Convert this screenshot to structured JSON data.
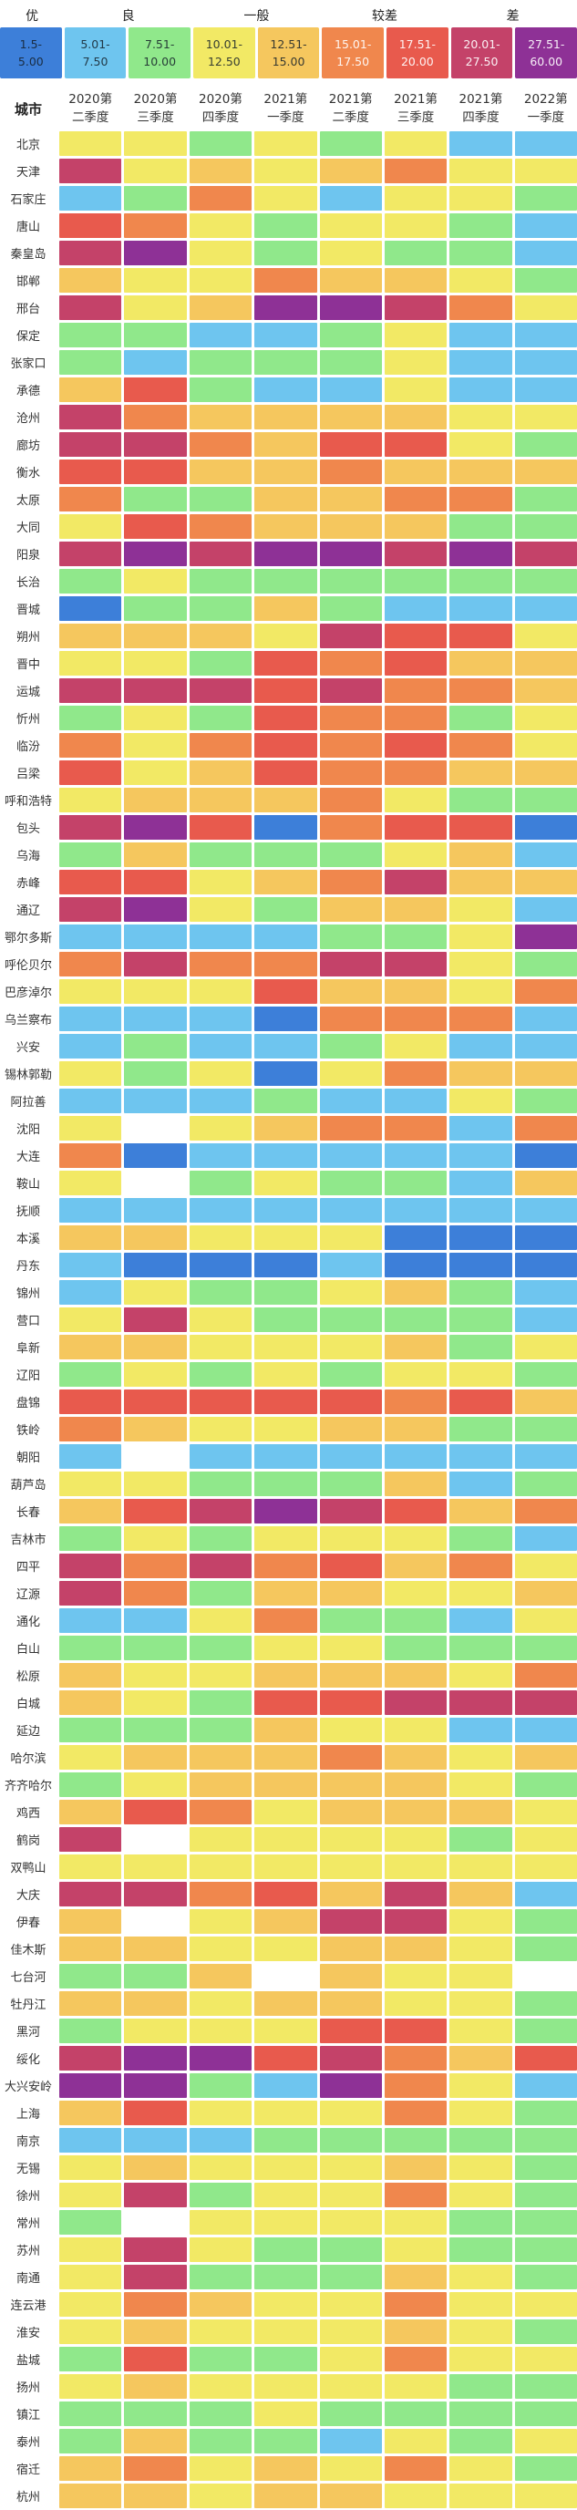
{
  "palette": {
    "0": "#FFFFFF",
    "1": "#3D7FD9",
    "2": "#6EC5EF",
    "3": "#90E88B",
    "4": "#F2E965",
    "5": "#F5C75E",
    "6": "#F0874D",
    "7": "#E85A4D",
    "8": "#C44269",
    "9": "#8E3196"
  },
  "legend": {
    "categories": [
      {
        "label": "优",
        "span": 1
      },
      {
        "label": "良",
        "span": 2
      },
      {
        "label": "一般",
        "span": 2
      },
      {
        "label": "较差",
        "span": 2
      },
      {
        "label": "差",
        "span": 2
      }
    ],
    "swatches": [
      {
        "line1": "1.5-",
        "line2": "5.00",
        "color": "#3D7FD9",
        "text": "dark"
      },
      {
        "line1": "5.01-",
        "line2": "7.50",
        "color": "#6EC5EF",
        "text": "dark"
      },
      {
        "line1": "7.51-",
        "line2": "10.00",
        "color": "#90E88B",
        "text": "dark"
      },
      {
        "line1": "10.01-",
        "line2": "12.50",
        "color": "#F2E965",
        "text": "dark"
      },
      {
        "line1": "12.51-",
        "line2": "15.00",
        "color": "#F5C75E",
        "text": "dark"
      },
      {
        "line1": "15.01-",
        "line2": "17.50",
        "color": "#F0874D",
        "text": "light"
      },
      {
        "line1": "17.51-",
        "line2": "20.00",
        "color": "#E85A4D",
        "text": "light"
      },
      {
        "line1": "20.01-",
        "line2": "27.50",
        "color": "#C44269",
        "text": "light"
      },
      {
        "line1": "27.51-",
        "line2": "60.00",
        "color": "#8E3196",
        "text": "light"
      }
    ]
  },
  "table": {
    "city_header": "城市",
    "columns": [
      {
        "line1": "2020第",
        "line2": "二季度"
      },
      {
        "line1": "2020第",
        "line2": "三季度"
      },
      {
        "line1": "2020第",
        "line2": "四季度"
      },
      {
        "line1": "2021第",
        "line2": "一季度"
      },
      {
        "line1": "2021第",
        "line2": "二季度"
      },
      {
        "line1": "2021第",
        "line2": "三季度"
      },
      {
        "line1": "2021第",
        "line2": "四季度"
      },
      {
        "line1": "2022第",
        "line2": "一季度"
      }
    ]
  },
  "chart_data": {
    "type": "heatmap",
    "title": "",
    "xlabel": "季度",
    "ylabel": "城市",
    "x_categories": [
      "2020第二季度",
      "2020第三季度",
      "2020第四季度",
      "2021第一季度",
      "2021第二季度",
      "2021第三季度",
      "2021第四季度",
      "2022第一季度"
    ],
    "legend_bins": [
      {
        "bin": 1,
        "category": "优",
        "range": "1.5-5.00",
        "color": "#3D7FD9"
      },
      {
        "bin": 2,
        "category": "良",
        "range": "5.01-7.50",
        "color": "#6EC5EF"
      },
      {
        "bin": 3,
        "category": "良",
        "range": "7.51-10.00",
        "color": "#90E88B"
      },
      {
        "bin": 4,
        "category": "一般",
        "range": "10.01-12.50",
        "color": "#F2E965"
      },
      {
        "bin": 5,
        "category": "一般",
        "range": "12.51-15.00",
        "color": "#F5C75E"
      },
      {
        "bin": 6,
        "category": "较差",
        "range": "15.01-17.50",
        "color": "#F0874D"
      },
      {
        "bin": 7,
        "category": "较差",
        "range": "17.51-20.00",
        "color": "#E85A4D"
      },
      {
        "bin": 8,
        "category": "差",
        "range": "20.01-27.50",
        "color": "#C44269"
      },
      {
        "bin": 9,
        "category": "差",
        "range": "27.51-60.00",
        "color": "#8E3196"
      }
    ],
    "values_encoding": "Each row lists one bin code per quarter column; codes 1-9 reference legend_bins, 0 = no data (blank cell).",
    "rows": [
      {
        "city": "北京",
        "cells": [
          4,
          4,
          3,
          4,
          3,
          4,
          2,
          2
        ]
      },
      {
        "city": "天津",
        "cells": [
          8,
          4,
          5,
          4,
          5,
          6,
          4,
          4
        ]
      },
      {
        "city": "石家庄",
        "cells": [
          2,
          3,
          6,
          4,
          2,
          4,
          4,
          3
        ]
      },
      {
        "city": "唐山",
        "cells": [
          7,
          6,
          4,
          3,
          4,
          4,
          3,
          2
        ]
      },
      {
        "city": "秦皇岛",
        "cells": [
          8,
          9,
          4,
          3,
          4,
          3,
          3,
          2
        ]
      },
      {
        "city": "邯郸",
        "cells": [
          5,
          4,
          4,
          6,
          5,
          5,
          4,
          3
        ]
      },
      {
        "city": "邢台",
        "cells": [
          8,
          4,
          5,
          9,
          9,
          8,
          6,
          4
        ]
      },
      {
        "city": "保定",
        "cells": [
          3,
          3,
          2,
          2,
          3,
          4,
          2,
          2
        ]
      },
      {
        "city": "张家口",
        "cells": [
          3,
          2,
          3,
          3,
          3,
          4,
          2,
          2
        ]
      },
      {
        "city": "承德",
        "cells": [
          5,
          7,
          3,
          2,
          2,
          4,
          2,
          2
        ]
      },
      {
        "city": "沧州",
        "cells": [
          8,
          6,
          5,
          5,
          5,
          5,
          4,
          4
        ]
      },
      {
        "city": "廊坊",
        "cells": [
          8,
          8,
          6,
          5,
          7,
          7,
          4,
          3
        ]
      },
      {
        "city": "衡水",
        "cells": [
          7,
          7,
          5,
          5,
          6,
          5,
          5,
          5
        ]
      },
      {
        "city": "太原",
        "cells": [
          6,
          3,
          3,
          5,
          5,
          6,
          6,
          3
        ]
      },
      {
        "city": "大同",
        "cells": [
          4,
          7,
          6,
          5,
          5,
          5,
          3,
          3
        ]
      },
      {
        "city": "阳泉",
        "cells": [
          8,
          9,
          8,
          9,
          9,
          8,
          9,
          8
        ]
      },
      {
        "city": "长治",
        "cells": [
          3,
          4,
          3,
          3,
          3,
          3,
          3,
          3
        ]
      },
      {
        "city": "晋城",
        "cells": [
          1,
          3,
          3,
          5,
          3,
          2,
          2,
          2
        ]
      },
      {
        "city": "朔州",
        "cells": [
          5,
          5,
          5,
          4,
          8,
          7,
          7,
          4
        ]
      },
      {
        "city": "晋中",
        "cells": [
          4,
          4,
          3,
          7,
          6,
          7,
          5,
          5
        ]
      },
      {
        "city": "运城",
        "cells": [
          8,
          8,
          8,
          7,
          8,
          6,
          6,
          5
        ]
      },
      {
        "city": "忻州",
        "cells": [
          3,
          4,
          3,
          7,
          6,
          6,
          3,
          4
        ]
      },
      {
        "city": "临汾",
        "cells": [
          6,
          4,
          6,
          7,
          6,
          7,
          6,
          4
        ]
      },
      {
        "city": "吕梁",
        "cells": [
          7,
          4,
          5,
          7,
          6,
          6,
          5,
          5
        ]
      },
      {
        "city": "呼和浩特",
        "cells": [
          4,
          5,
          5,
          5,
          6,
          4,
          3,
          3
        ]
      },
      {
        "city": "包头",
        "cells": [
          8,
          9,
          7,
          1,
          6,
          7,
          7,
          1
        ]
      },
      {
        "city": "乌海",
        "cells": [
          3,
          5,
          3,
          3,
          3,
          4,
          5,
          2
        ]
      },
      {
        "city": "赤峰",
        "cells": [
          7,
          7,
          4,
          5,
          6,
          8,
          5,
          5
        ]
      },
      {
        "city": "通辽",
        "cells": [
          8,
          9,
          4,
          3,
          5,
          5,
          4,
          2
        ]
      },
      {
        "city": "鄂尔多斯",
        "cells": [
          2,
          2,
          2,
          2,
          3,
          3,
          4,
          9
        ]
      },
      {
        "city": "呼伦贝尔",
        "cells": [
          6,
          8,
          6,
          6,
          8,
          8,
          4,
          3
        ]
      },
      {
        "city": "巴彦淖尔",
        "cells": [
          4,
          4,
          4,
          7,
          5,
          5,
          4,
          6
        ]
      },
      {
        "city": "乌兰察布",
        "cells": [
          2,
          2,
          2,
          1,
          6,
          6,
          6,
          2
        ]
      },
      {
        "city": "兴安",
        "cells": [
          2,
          3,
          2,
          2,
          3,
          4,
          2,
          2
        ]
      },
      {
        "city": "锡林郭勒",
        "cells": [
          4,
          3,
          4,
          1,
          4,
          6,
          5,
          5
        ]
      },
      {
        "city": "阿拉善",
        "cells": [
          2,
          2,
          2,
          3,
          2,
          2,
          4,
          3
        ]
      },
      {
        "city": "沈阳",
        "cells": [
          4,
          0,
          4,
          5,
          6,
          6,
          2,
          6
        ]
      },
      {
        "city": "大连",
        "cells": [
          6,
          1,
          2,
          2,
          2,
          2,
          2,
          1
        ]
      },
      {
        "city": "鞍山",
        "cells": [
          4,
          0,
          3,
          4,
          3,
          3,
          2,
          5
        ]
      },
      {
        "city": "抚顺",
        "cells": [
          2,
          2,
          2,
          2,
          2,
          2,
          2,
          2
        ]
      },
      {
        "city": "本溪",
        "cells": [
          5,
          5,
          4,
          4,
          4,
          1,
          1,
          1
        ]
      },
      {
        "city": "丹东",
        "cells": [
          2,
          1,
          1,
          1,
          2,
          1,
          1,
          1
        ]
      },
      {
        "city": "锦州",
        "cells": [
          2,
          4,
          3,
          3,
          4,
          5,
          3,
          2
        ]
      },
      {
        "city": "营口",
        "cells": [
          4,
          8,
          4,
          3,
          3,
          3,
          3,
          2
        ]
      },
      {
        "city": "阜新",
        "cells": [
          5,
          5,
          4,
          4,
          4,
          5,
          3,
          4
        ]
      },
      {
        "city": "辽阳",
        "cells": [
          3,
          4,
          3,
          4,
          3,
          4,
          4,
          3
        ]
      },
      {
        "city": "盘锦",
        "cells": [
          7,
          7,
          7,
          7,
          7,
          6,
          7,
          5
        ]
      },
      {
        "city": "铁岭",
        "cells": [
          6,
          5,
          4,
          4,
          5,
          5,
          3,
          3
        ]
      },
      {
        "city": "朝阳",
        "cells": [
          2,
          0,
          2,
          2,
          2,
          2,
          2,
          2
        ]
      },
      {
        "city": "葫芦岛",
        "cells": [
          4,
          4,
          3,
          3,
          3,
          5,
          2,
          3
        ]
      },
      {
        "city": "长春",
        "cells": [
          5,
          7,
          8,
          9,
          8,
          7,
          5,
          6
        ]
      },
      {
        "city": "吉林市",
        "cells": [
          3,
          4,
          3,
          4,
          4,
          4,
          3,
          2
        ]
      },
      {
        "city": "四平",
        "cells": [
          8,
          6,
          8,
          6,
          7,
          5,
          6,
          4
        ]
      },
      {
        "city": "辽源",
        "cells": [
          8,
          6,
          3,
          5,
          5,
          4,
          4,
          5
        ]
      },
      {
        "city": "通化",
        "cells": [
          2,
          2,
          4,
          6,
          3,
          3,
          2,
          4
        ]
      },
      {
        "city": "白山",
        "cells": [
          3,
          3,
          3,
          4,
          4,
          3,
          3,
          3
        ]
      },
      {
        "city": "松原",
        "cells": [
          5,
          4,
          4,
          5,
          5,
          5,
          4,
          6
        ]
      },
      {
        "city": "白城",
        "cells": [
          5,
          4,
          3,
          7,
          7,
          8,
          8,
          8
        ]
      },
      {
        "city": "延边",
        "cells": [
          3,
          3,
          3,
          5,
          4,
          4,
          2,
          2
        ]
      },
      {
        "city": "哈尔滨",
        "cells": [
          4,
          5,
          5,
          5,
          6,
          5,
          4,
          5
        ]
      },
      {
        "city": "齐齐哈尔",
        "cells": [
          3,
          4,
          5,
          5,
          5,
          5,
          4,
          3
        ]
      },
      {
        "city": "鸡西",
        "cells": [
          5,
          7,
          6,
          4,
          5,
          5,
          5,
          4
        ]
      },
      {
        "city": "鹤岗",
        "cells": [
          8,
          0,
          4,
          4,
          4,
          4,
          3,
          4
        ]
      },
      {
        "city": "双鸭山",
        "cells": [
          4,
          4,
          4,
          4,
          4,
          4,
          4,
          4
        ]
      },
      {
        "city": "大庆",
        "cells": [
          8,
          8,
          6,
          7,
          5,
          8,
          5,
          2
        ]
      },
      {
        "city": "伊春",
        "cells": [
          5,
          0,
          4,
          5,
          8,
          8,
          4,
          3
        ]
      },
      {
        "city": "佳木斯",
        "cells": [
          5,
          5,
          4,
          4,
          5,
          5,
          4,
          3
        ]
      },
      {
        "city": "七台河",
        "cells": [
          3,
          3,
          5,
          0,
          5,
          4,
          4,
          0
        ]
      },
      {
        "city": "牡丹江",
        "cells": [
          5,
          5,
          4,
          5,
          5,
          4,
          4,
          3
        ]
      },
      {
        "city": "黑河",
        "cells": [
          3,
          4,
          4,
          4,
          7,
          7,
          4,
          3
        ]
      },
      {
        "city": "绥化",
        "cells": [
          8,
          9,
          9,
          7,
          8,
          6,
          5,
          7
        ]
      },
      {
        "city": "大兴安岭",
        "cells": [
          9,
          9,
          3,
          2,
          9,
          6,
          4,
          2
        ]
      },
      {
        "city": "上海",
        "cells": [
          5,
          7,
          4,
          4,
          4,
          6,
          4,
          3
        ]
      },
      {
        "city": "南京",
        "cells": [
          2,
          2,
          2,
          3,
          3,
          3,
          3,
          3
        ]
      },
      {
        "city": "无锡",
        "cells": [
          4,
          5,
          4,
          4,
          4,
          5,
          4,
          3
        ]
      },
      {
        "city": "徐州",
        "cells": [
          4,
          8,
          3,
          4,
          4,
          6,
          4,
          3
        ]
      },
      {
        "city": "常州",
        "cells": [
          3,
          0,
          4,
          4,
          4,
          4,
          3,
          3
        ]
      },
      {
        "city": "苏州",
        "cells": [
          4,
          8,
          4,
          3,
          3,
          4,
          3,
          3
        ]
      },
      {
        "city": "南通",
        "cells": [
          4,
          8,
          3,
          3,
          3,
          5,
          4,
          3
        ]
      },
      {
        "city": "连云港",
        "cells": [
          4,
          6,
          5,
          4,
          4,
          6,
          4,
          4
        ]
      },
      {
        "city": "淮安",
        "cells": [
          4,
          5,
          4,
          4,
          4,
          5,
          4,
          3
        ]
      },
      {
        "city": "盐城",
        "cells": [
          3,
          7,
          3,
          3,
          4,
          6,
          4,
          4
        ]
      },
      {
        "city": "扬州",
        "cells": [
          4,
          5,
          4,
          4,
          4,
          4,
          3,
          3
        ]
      },
      {
        "city": "镇江",
        "cells": [
          3,
          3,
          3,
          4,
          3,
          3,
          3,
          3
        ]
      },
      {
        "city": "泰州",
        "cells": [
          3,
          5,
          3,
          3,
          2,
          4,
          3,
          4
        ]
      },
      {
        "city": "宿迁",
        "cells": [
          5,
          6,
          4,
          5,
          4,
          6,
          4,
          3
        ]
      },
      {
        "city": "杭州",
        "cells": [
          5,
          5,
          4,
          5,
          5,
          4,
          4,
          4
        ]
      }
    ]
  }
}
